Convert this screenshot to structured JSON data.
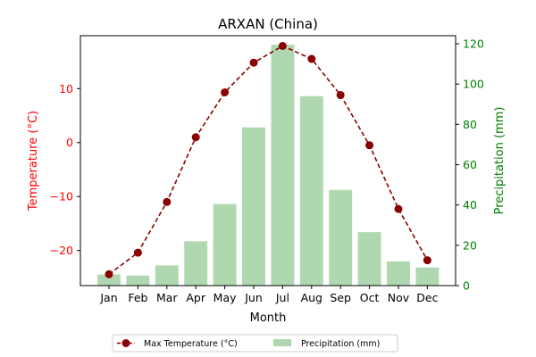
{
  "chart_data": {
    "type": "bar",
    "title": "ARXAN (China)",
    "xlabel": "Month",
    "ylabel_left": "Temperature (°C)",
    "ylabel_right": "Precipitation (mm)",
    "categories": [
      "Jan",
      "Feb",
      "Mar",
      "Apr",
      "May",
      "Jun",
      "Jul",
      "Aug",
      "Sep",
      "Oct",
      "Nov",
      "Dec"
    ],
    "ylim_left": [
      -26.5,
      19.8
    ],
    "ylim_right": [
      0,
      124
    ],
    "yticks_left": [
      -20,
      -10,
      0,
      10
    ],
    "yticks_right": [
      0,
      20,
      40,
      60,
      80,
      100,
      120
    ],
    "grid": false,
    "legend_position": "bottom-center",
    "series": [
      {
        "name": "Max Temperature (°C)",
        "type": "line",
        "axis": "left",
        "color": "#8b0000",
        "style": "dashed",
        "marker": "circle",
        "values": [
          -24.4,
          -20.4,
          -11.0,
          1.0,
          9.3,
          14.8,
          17.9,
          15.5,
          8.8,
          -0.5,
          -12.3,
          -21.8
        ]
      },
      {
        "name": "Precipitation (mm)",
        "type": "bar",
        "axis": "right",
        "color": "#b0d8b0",
        "values": [
          5.5,
          5.0,
          10.0,
          22.0,
          40.5,
          78.5,
          119.5,
          94.0,
          47.5,
          26.5,
          12.0,
          9.0
        ]
      }
    ],
    "colors": {
      "left_axis": "#ff0000",
      "right_axis": "#008000",
      "axis_line": "#000000"
    }
  }
}
